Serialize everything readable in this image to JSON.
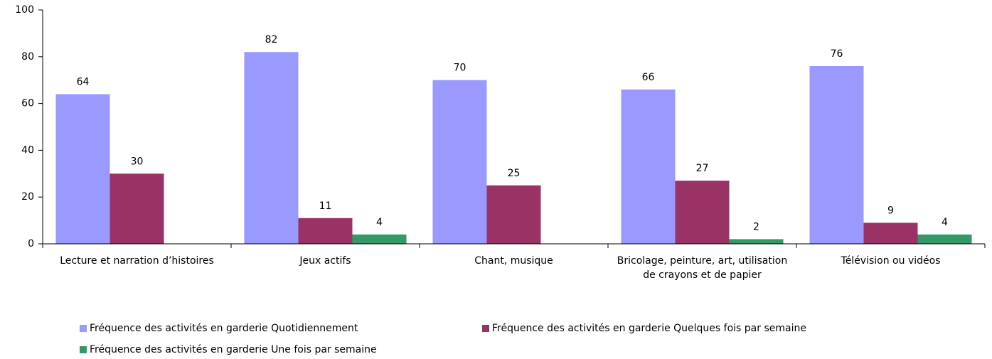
{
  "chart_data": {
    "type": "bar",
    "categories": [
      "Lecture et narration d’histoires",
      "Jeux actifs",
      "Chant, musique",
      "Bricolage, peinture, art, utilisation de crayons et de papier",
      "Télévision ou vidéos"
    ],
    "series": [
      {
        "name": "Fréquence des activités en garderie Quotidiennement",
        "color": "#9999ff",
        "values": [
          64,
          82,
          70,
          66,
          76
        ]
      },
      {
        "name": "Fréquence des activités en garderie Quelques fois par semaine",
        "color": "#993366",
        "values": [
          30,
          11,
          25,
          27,
          9
        ]
      },
      {
        "name": "Fréquence des activités en garderie Une fois par semaine",
        "color": "#339966",
        "values": [
          null,
          4,
          null,
          2,
          4
        ]
      }
    ],
    "ylim": [
      0,
      100
    ],
    "yticks": [
      0,
      20,
      40,
      60,
      80,
      100
    ],
    "grid": false,
    "legend": "bottom"
  }
}
